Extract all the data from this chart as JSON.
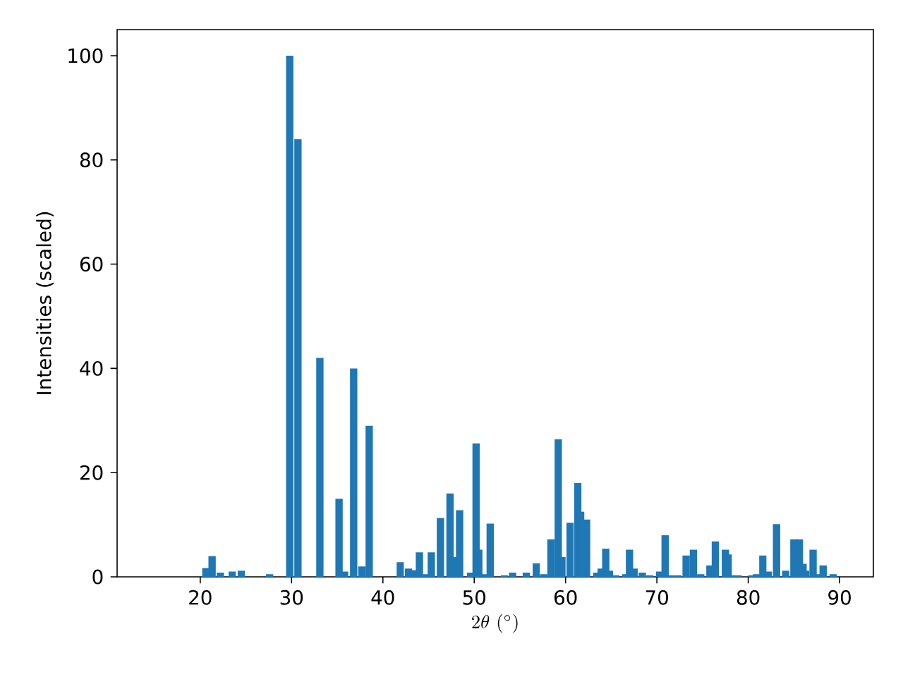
{
  "chart_data": {
    "type": "bar",
    "xlabel": "2\\theta\\ (^{\\circ})",
    "ylabel": "Intensities (scaled)",
    "color": "#1f77b4",
    "x": [
      20.6,
      21.3,
      22.2,
      23.5,
      24.5,
      27.6,
      29.8,
      30.3,
      30.7,
      33.1,
      35.2,
      35.8,
      36.8,
      37.7,
      38.5,
      41.9,
      42.8,
      43.3,
      44.0,
      44.6,
      45.3,
      46.0,
      46.3,
      47.35,
      47.7,
      48.4,
      49.6,
      50.2,
      50.5,
      51.0,
      51.75,
      53.3,
      54.2,
      55.7,
      56.8,
      57.6,
      58.1,
      58.4,
      59.2,
      59.6,
      60.5,
      61.35,
      61.65,
      62.3,
      63.4,
      63.9,
      64.4,
      64.8,
      65.5,
      66.3,
      66.6,
      67.0,
      67.5,
      68.4,
      69.2,
      69.9,
      70.3,
      70.9,
      71.5,
      72.3,
      73.2,
      74.0,
      74.8,
      75.4,
      75.8,
      76.4,
      77.0,
      77.5,
      77.8,
      78.2,
      78.9,
      80.4,
      80.9,
      81.6,
      82.2,
      83.1,
      84.1,
      85.0,
      85.6,
      86.0,
      86.3,
      87.1,
      87.6,
      88.2,
      89.3
    ],
    "values": [
      1.7,
      4,
      0.8,
      1,
      1.2,
      0.5,
      100,
      null,
      84,
      42,
      15,
      1,
      40,
      2,
      29,
      2.8,
      1.6,
      1.3,
      4.7,
      0.5,
      4.7,
      null,
      11.3,
      16,
      3.8,
      12.8,
      0.8,
      25.6,
      5.2,
      0.5,
      10.2,
      0.3,
      0.8,
      0.8,
      2.6,
      0.5,
      null,
      7.2,
      26.4,
      3.8,
      10.4,
      18,
      12.5,
      11,
      0.8,
      1.6,
      5.4,
      1.2,
      0.3,
      null,
      0.5,
      5.2,
      1.6,
      0.8,
      0.3,
      null,
      1,
      8,
      0.3,
      0.3,
      4.1,
      5.2,
      0.5,
      null,
      2.2,
      6.8,
      null,
      5.2,
      4.3,
      0.3,
      0.3,
      0.3,
      0.5,
      4.1,
      1,
      10.1,
      1.2,
      7.2,
      7.2,
      2.5,
      1.2,
      5.2,
      0.5,
      2.2,
      0.5
    ],
    "xlim": [
      10.9,
      93.7
    ],
    "ylim": [
      0,
      105
    ],
    "xticks": [
      20,
      30,
      40,
      50,
      60,
      70,
      80,
      90
    ],
    "yticks": [
      0,
      20,
      40,
      60,
      80,
      100
    ]
  }
}
